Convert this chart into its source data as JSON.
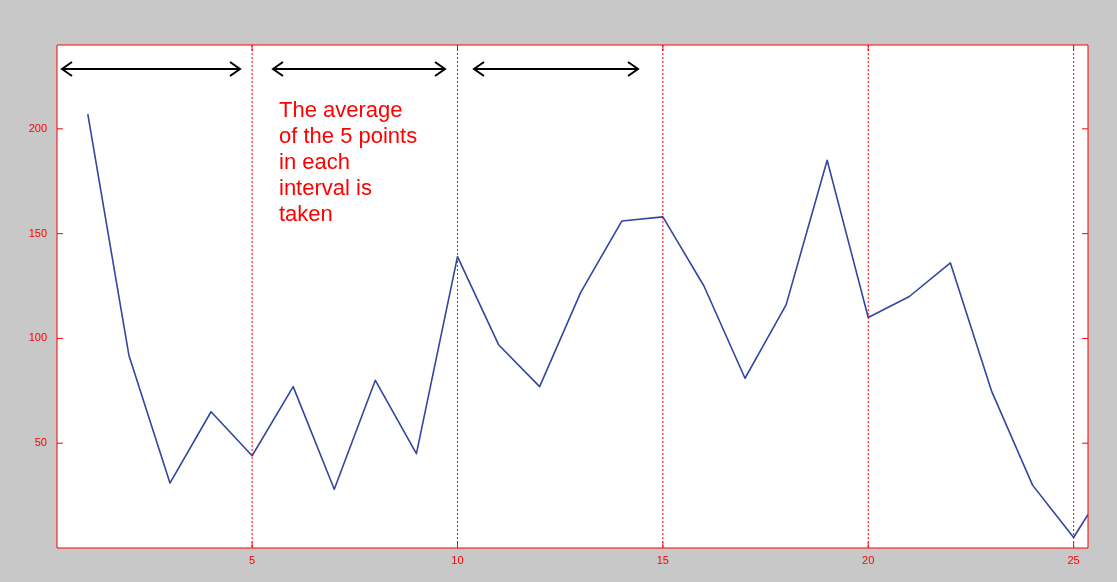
{
  "chart_data": {
    "type": "line",
    "x": [
      1,
      2,
      3,
      4,
      5,
      6,
      7,
      8,
      9,
      10,
      11,
      12,
      13,
      14,
      15,
      16,
      17,
      18,
      19,
      20,
      21,
      22,
      23,
      24,
      25,
      25.35
    ],
    "series": [
      {
        "color": "#3346a0",
        "values": [
          207,
          92,
          31,
          65,
          44,
          77,
          28,
          80,
          45,
          139,
          97,
          77,
          122,
          156,
          158,
          125,
          81,
          116,
          185,
          110,
          120,
          136,
          75,
          30,
          5,
          16
        ]
      }
    ],
    "xlim": [
      0.25,
      25.35
    ],
    "xticks": [
      5,
      10,
      15,
      20,
      25
    ],
    "ylim": [
      0,
      240
    ],
    "yticks": [
      50,
      100,
      150,
      200
    ],
    "grid": false,
    "legend": false,
    "marker": "none",
    "line_style": "solid",
    "ref_lines": [
      {
        "axis": "x",
        "value": 5,
        "color": "#ff0000",
        "line_style": "dotted"
      },
      {
        "axis": "x",
        "value": 10,
        "color": "#ff0000",
        "line_style": "dotted"
      },
      {
        "axis": "x",
        "value": 15,
        "color": "#ff0000",
        "line_style": "dotted"
      },
      {
        "axis": "x",
        "value": 20,
        "color": "#ff0000",
        "line_style": "dotted"
      },
      {
        "axis": "x",
        "value": 25,
        "color": "#ff0000",
        "line_style": "dotted"
      }
    ],
    "annotations": [
      "The average of the 5 points in each interval is taken"
    ]
  }
}
